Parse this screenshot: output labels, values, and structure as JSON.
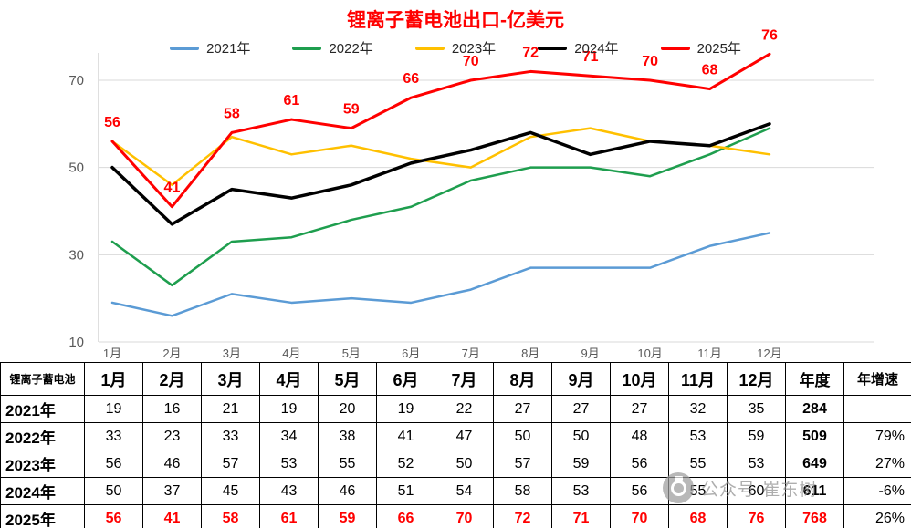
{
  "chart_data": {
    "type": "line",
    "title": "锂离子蓄电池出口-亿美元",
    "x": [
      "1月",
      "2月",
      "3月",
      "4月",
      "5月",
      "6月",
      "7月",
      "8月",
      "9月",
      "10月",
      "11月",
      "12月"
    ],
    "yticks": [
      10,
      30,
      50,
      70
    ],
    "ylim": [
      10,
      80
    ],
    "grid": true,
    "legend_position": "top",
    "series": [
      {
        "name": "2021年",
        "color": "#5B9BD5",
        "width": 2.5,
        "show_labels": false,
        "values": [
          19,
          16,
          21,
          19,
          20,
          19,
          22,
          27,
          27,
          27,
          32,
          35
        ]
      },
      {
        "name": "2022年",
        "color": "#1E9E4E",
        "width": 2.5,
        "show_labels": false,
        "values": [
          33,
          23,
          33,
          34,
          38,
          41,
          47,
          50,
          50,
          48,
          53,
          59
        ]
      },
      {
        "name": "2023年",
        "color": "#FFC000",
        "width": 2.5,
        "show_labels": false,
        "values": [
          56,
          46,
          57,
          53,
          55,
          52,
          50,
          57,
          59,
          56,
          55,
          53
        ]
      },
      {
        "name": "2024年",
        "color": "#000000",
        "width": 3.5,
        "show_labels": false,
        "values": [
          50,
          37,
          45,
          43,
          46,
          51,
          54,
          58,
          53,
          56,
          55,
          60
        ]
      },
      {
        "name": "2025年",
        "color": "#FF0000",
        "width": 3,
        "show_labels": true,
        "values": [
          56,
          41,
          58,
          61,
          59,
          66,
          70,
          72,
          71,
          70,
          68,
          76
        ]
      }
    ]
  },
  "table": {
    "header": [
      "锂离子蓄电池",
      "1月",
      "2月",
      "3月",
      "4月",
      "5月",
      "6月",
      "7月",
      "8月",
      "9月",
      "10月",
      "11月",
      "12月",
      "年度",
      "年增速"
    ],
    "rows": [
      {
        "label": "2021年",
        "values": [
          19,
          16,
          21,
          19,
          20,
          19,
          22,
          27,
          27,
          27,
          32,
          35
        ],
        "annual": 284,
        "growth": "",
        "highlight": false
      },
      {
        "label": "2022年",
        "values": [
          33,
          23,
          33,
          34,
          38,
          41,
          47,
          50,
          50,
          48,
          53,
          59
        ],
        "annual": 509,
        "growth": "79%",
        "highlight": false
      },
      {
        "label": "2023年",
        "values": [
          56,
          46,
          57,
          53,
          55,
          52,
          50,
          57,
          59,
          56,
          55,
          53
        ],
        "annual": 649,
        "growth": "27%",
        "highlight": false
      },
      {
        "label": "2024年",
        "values": [
          50,
          37,
          45,
          43,
          46,
          51,
          54,
          58,
          53,
          56,
          55,
          60
        ],
        "annual": 611,
        "growth": "-6%",
        "highlight": false
      },
      {
        "label": "2025年",
        "values": [
          56,
          41,
          58,
          61,
          59,
          66,
          70,
          72,
          71,
          70,
          68,
          76
        ],
        "annual": 768,
        "growth": "26%",
        "highlight": true
      }
    ]
  },
  "watermark": {
    "text": "公众号·崔东树"
  }
}
